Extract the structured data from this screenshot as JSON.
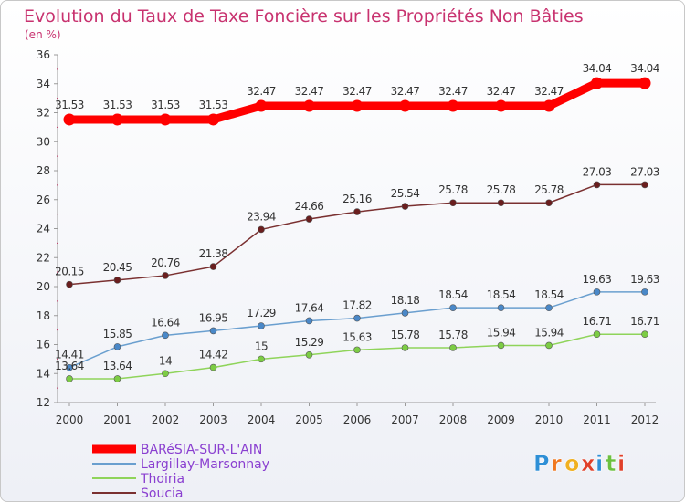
{
  "chart_data": {
    "type": "line",
    "title": "Evolution du Taux de Taxe Foncière sur les Propriétés Non Bâties",
    "subtitle": "(en %)",
    "xlabel": "",
    "ylabel": "(en %)",
    "categories": [
      "2000",
      "2001",
      "2002",
      "2003",
      "2004",
      "2005",
      "2006",
      "2007",
      "2008",
      "2009",
      "2010",
      "2011",
      "2012"
    ],
    "ylim": [
      12,
      36
    ],
    "yticks": [
      12,
      14,
      16,
      18,
      20,
      22,
      24,
      26,
      28,
      30,
      32,
      34,
      36
    ],
    "grid": false,
    "legend_position": "bottom-left",
    "series": [
      {
        "name": "BARéSIA-SUR-L'AIN",
        "color": "#ff0000",
        "marker": "#ff0000",
        "values": [
          31.53,
          31.53,
          31.53,
          31.53,
          32.47,
          32.47,
          32.47,
          32.47,
          32.47,
          32.47,
          32.47,
          34.04,
          34.04
        ],
        "labels": [
          "31.53",
          "31.53",
          "31.53",
          "31.53",
          "32.47",
          "32.47",
          "32.47",
          "32.47",
          "32.47",
          "32.47",
          "32.47",
          "34.04",
          "34.04"
        ]
      },
      {
        "name": "Largillay-Marsonnay",
        "color": "#6a9fcf",
        "marker": "#4a88c8",
        "values": [
          14.41,
          15.85,
          16.64,
          16.95,
          17.29,
          17.64,
          17.82,
          18.18,
          18.54,
          18.54,
          18.54,
          19.63,
          19.63
        ],
        "labels": [
          "14.41",
          "15.85",
          "16.64",
          "16.95",
          "17.29",
          "17.64",
          "17.82",
          "18.18",
          "18.54",
          "18.54",
          "18.54",
          "19.63",
          "19.63"
        ]
      },
      {
        "name": "Thoiria",
        "color": "#8fd45a",
        "marker": "#7ccc44",
        "values": [
          13.64,
          13.64,
          14,
          14.42,
          15,
          15.29,
          15.63,
          15.78,
          15.78,
          15.94,
          15.94,
          16.71,
          16.71
        ],
        "labels": [
          "13.64",
          "13.64",
          "14",
          "14.42",
          "15",
          "15.29",
          "15.63",
          "15.78",
          "15.78",
          "15.94",
          "15.94",
          "16.71",
          "16.71"
        ]
      },
      {
        "name": "Soucia",
        "color": "#7a3030",
        "marker": "#6a1e1e",
        "values": [
          20.15,
          20.45,
          20.76,
          21.38,
          23.94,
          24.66,
          25.16,
          25.54,
          25.78,
          25.78,
          25.78,
          27.03,
          27.03
        ],
        "labels": [
          "20.15",
          "20.45",
          "20.76",
          "21.38",
          "23.94",
          "24.66",
          "25.16",
          "25.54",
          "25.78",
          "25.78",
          "25.78",
          "27.03",
          "27.03"
        ]
      }
    ]
  },
  "logo": {
    "letters": [
      "P",
      "r",
      "o",
      "x",
      "i",
      "t",
      "i"
    ],
    "colors": [
      "#2e8fd6",
      "#f07820",
      "#f0b020",
      "#e0402a",
      "#2e8fd6",
      "#6cc040",
      "#e0402a"
    ]
  }
}
